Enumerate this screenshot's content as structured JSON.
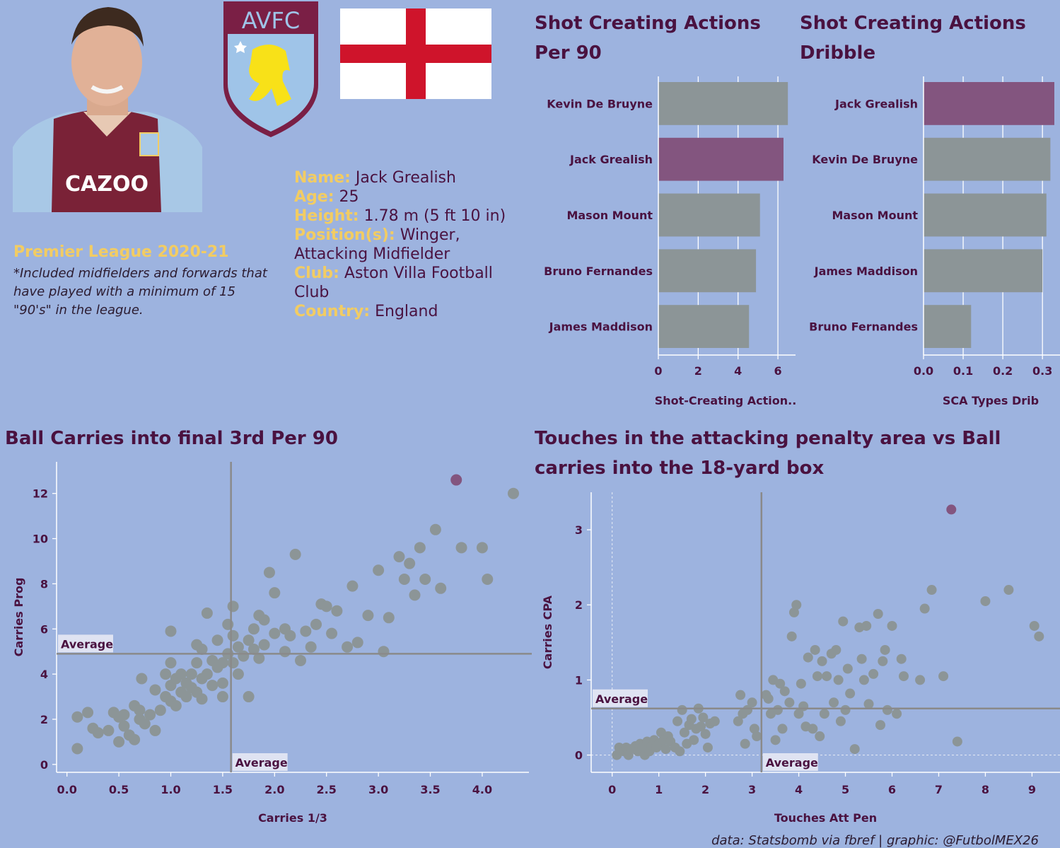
{
  "player": {
    "name_label": "Name:",
    "name": "Jack Grealish",
    "age_label": "Age:",
    "age": "25",
    "height_label": "Height:",
    "height": "1.78 m (5 ft 10 in)",
    "position_label": "Position(s):",
    "position": "Winger, Attacking Midfielder",
    "club_label": "Club:",
    "club": "Aston Villa Football Club",
    "country_label": "Country:",
    "country": "England"
  },
  "club_badge": {
    "text": "AVFC"
  },
  "shirt_sponsor": "CAZOO",
  "league": "Premier League 2020-21",
  "note": "*Included midfielders and forwards that have played with a minimum of 15 \"90's\" in the league.",
  "credit": "data: Statsbomb via fbref | graphic: @FutbolMEX26",
  "colors": {
    "background": "#9db3df",
    "highlight": "#83557f",
    "others": "#8c9597",
    "text": "#4a1240",
    "accent": "#f2cc63"
  },
  "average_label": "Average",
  "chart_data": [
    {
      "type": "bar",
      "title": "Shot Creating Actions Per 90",
      "categories": [
        "Kevin De Bruyne",
        "Jack Grealish",
        "Mason Mount",
        "Bruno Fernandes",
        "James Maddison"
      ],
      "values": [
        6.5,
        6.28,
        5.1,
        4.9,
        4.55
      ],
      "highlight": "Jack Grealish",
      "xlabel": "Shot-Creating Action..",
      "xticks": [
        "0",
        "2",
        "4",
        "6"
      ],
      "xlim": [
        0,
        6.6
      ],
      "grid": true
    },
    {
      "type": "bar",
      "title": "Shot Creating Actions Dribble",
      "categories": [
        "Jack Grealish",
        "Kevin De Bruyne",
        "Mason Mount",
        "James Maddison",
        "Bruno Fernandes"
      ],
      "values": [
        0.33,
        0.32,
        0.31,
        0.3,
        0.12
      ],
      "highlight": "Jack Grealish",
      "xlabel": "SCA Types Drib",
      "xticks": [
        "0.0",
        "0.1",
        "0.2",
        "0.3"
      ],
      "xlim": [
        0,
        0.33
      ],
      "grid": true
    },
    {
      "type": "scatter",
      "title": "Ball Carries into final 3rd Per 90",
      "xlabel": "Carries 1/3",
      "ylabel": "Carries Prog",
      "xticks": [
        "0.0",
        "0.5",
        "1.0",
        "1.5",
        "2.0",
        "2.5",
        "3.0",
        "3.5",
        "4.0"
      ],
      "yticks": [
        "0",
        "2",
        "4",
        "6",
        "8",
        "10",
        "12"
      ],
      "xlim": [
        -0.1,
        4.45
      ],
      "ylim": [
        -0.35,
        13.4
      ],
      "x_average": 1.58,
      "y_average": 4.9,
      "highlight_point": [
        3.75,
        12.6
      ],
      "points": [
        [
          0.1,
          2.1
        ],
        [
          0.1,
          0.7
        ],
        [
          0.2,
          2.3
        ],
        [
          0.25,
          1.6
        ],
        [
          0.3,
          1.4
        ],
        [
          0.4,
          1.5
        ],
        [
          0.45,
          2.3
        ],
        [
          0.5,
          2.1
        ],
        [
          0.5,
          1.0
        ],
        [
          0.55,
          1.7
        ],
        [
          0.55,
          2.2
        ],
        [
          0.6,
          1.3
        ],
        [
          0.65,
          2.6
        ],
        [
          0.65,
          1.1
        ],
        [
          0.7,
          2.0
        ],
        [
          0.7,
          2.4
        ],
        [
          0.72,
          3.8
        ],
        [
          0.75,
          1.8
        ],
        [
          0.8,
          2.2
        ],
        [
          0.85,
          3.3
        ],
        [
          0.85,
          1.5
        ],
        [
          0.9,
          2.4
        ],
        [
          0.95,
          3.0
        ],
        [
          0.95,
          4.0
        ],
        [
          1.0,
          2.8
        ],
        [
          1.0,
          3.5
        ],
        [
          1.0,
          4.5
        ],
        [
          1.0,
          5.9
        ],
        [
          1.05,
          3.8
        ],
        [
          1.05,
          2.6
        ],
        [
          1.1,
          3.2
        ],
        [
          1.1,
          4.0
        ],
        [
          1.15,
          3.6
        ],
        [
          1.15,
          3.0
        ],
        [
          1.2,
          4.0
        ],
        [
          1.2,
          3.4
        ],
        [
          1.25,
          3.2
        ],
        [
          1.25,
          4.5
        ],
        [
          1.25,
          5.3
        ],
        [
          1.3,
          2.9
        ],
        [
          1.3,
          5.1
        ],
        [
          1.3,
          3.8
        ],
        [
          1.35,
          4.0
        ],
        [
          1.35,
          6.7
        ],
        [
          1.4,
          4.6
        ],
        [
          1.4,
          3.5
        ],
        [
          1.45,
          4.3
        ],
        [
          1.45,
          5.5
        ],
        [
          1.5,
          3.6
        ],
        [
          1.5,
          4.5
        ],
        [
          1.5,
          3.0
        ],
        [
          1.55,
          4.9
        ],
        [
          1.55,
          6.2
        ],
        [
          1.6,
          5.7
        ],
        [
          1.6,
          4.5
        ],
        [
          1.6,
          7.0
        ],
        [
          1.65,
          5.2
        ],
        [
          1.65,
          4.0
        ],
        [
          1.7,
          4.8
        ],
        [
          1.75,
          5.5
        ],
        [
          1.75,
          3.0
        ],
        [
          1.8,
          5.1
        ],
        [
          1.8,
          6.0
        ],
        [
          1.85,
          6.6
        ],
        [
          1.85,
          4.7
        ],
        [
          1.9,
          6.4
        ],
        [
          1.9,
          5.3
        ],
        [
          1.95,
          8.5
        ],
        [
          2.0,
          5.8
        ],
        [
          2.0,
          7.6
        ],
        [
          2.1,
          5.0
        ],
        [
          2.1,
          6.0
        ],
        [
          2.15,
          5.7
        ],
        [
          2.2,
          9.3
        ],
        [
          2.25,
          4.6
        ],
        [
          2.3,
          5.9
        ],
        [
          2.35,
          5.2
        ],
        [
          2.4,
          6.2
        ],
        [
          2.45,
          7.1
        ],
        [
          2.5,
          7.0
        ],
        [
          2.55,
          5.8
        ],
        [
          2.6,
          6.8
        ],
        [
          2.7,
          5.2
        ],
        [
          2.75,
          7.9
        ],
        [
          2.8,
          5.4
        ],
        [
          2.9,
          6.6
        ],
        [
          3.0,
          8.6
        ],
        [
          3.05,
          5.0
        ],
        [
          3.1,
          6.5
        ],
        [
          3.2,
          9.2
        ],
        [
          3.25,
          8.2
        ],
        [
          3.3,
          8.9
        ],
        [
          3.35,
          7.5
        ],
        [
          3.4,
          9.6
        ],
        [
          3.45,
          8.2
        ],
        [
          3.55,
          10.4
        ],
        [
          3.6,
          7.8
        ],
        [
          3.8,
          9.6
        ],
        [
          4.0,
          9.6
        ],
        [
          4.05,
          8.2
        ],
        [
          4.3,
          12.0
        ]
      ]
    },
    {
      "type": "scatter",
      "title": "Touches in the attacking penalty area vs Ball carries into the 18-yard box",
      "xlabel": "Touches Att Pen",
      "ylabel": "Carries CPA",
      "xticks": [
        "0",
        "1",
        "2",
        "3",
        "4",
        "5",
        "6",
        "7",
        "8",
        "9"
      ],
      "yticks": [
        "0",
        "1",
        "2",
        "3"
      ],
      "xlim": [
        -0.45,
        9.6
      ],
      "ylim": [
        -0.23,
        3.5
      ],
      "x_average": 3.2,
      "y_average": 0.62,
      "highlight_point": [
        7.27,
        3.27
      ],
      "points": [
        [
          0.1,
          0.0
        ],
        [
          0.15,
          0.1
        ],
        [
          0.25,
          0.05
        ],
        [
          0.3,
          0.1
        ],
        [
          0.35,
          0.0
        ],
        [
          0.4,
          0.08
        ],
        [
          0.5,
          0.12
        ],
        [
          0.55,
          0.05
        ],
        [
          0.6,
          0.15
        ],
        [
          0.65,
          0.1
        ],
        [
          0.7,
          0.0
        ],
        [
          0.75,
          0.18
        ],
        [
          0.8,
          0.05
        ],
        [
          0.85,
          0.12
        ],
        [
          0.9,
          0.2
        ],
        [
          0.95,
          0.1
        ],
        [
          1.0,
          0.15
        ],
        [
          1.05,
          0.3
        ],
        [
          1.1,
          0.2
        ],
        [
          1.15,
          0.08
        ],
        [
          1.2,
          0.25
        ],
        [
          1.25,
          0.18
        ],
        [
          1.35,
          0.1
        ],
        [
          1.4,
          0.45
        ],
        [
          1.45,
          0.05
        ],
        [
          1.5,
          0.6
        ],
        [
          1.55,
          0.3
        ],
        [
          1.6,
          0.15
        ],
        [
          1.65,
          0.4
        ],
        [
          1.7,
          0.48
        ],
        [
          1.75,
          0.2
        ],
        [
          1.8,
          0.35
        ],
        [
          1.85,
          0.62
        ],
        [
          1.9,
          0.38
        ],
        [
          1.95,
          0.5
        ],
        [
          2.0,
          0.28
        ],
        [
          2.05,
          0.1
        ],
        [
          2.1,
          0.42
        ],
        [
          2.2,
          0.45
        ],
        [
          2.7,
          0.45
        ],
        [
          2.75,
          0.8
        ],
        [
          2.8,
          0.55
        ],
        [
          2.85,
          0.15
        ],
        [
          2.9,
          0.6
        ],
        [
          3.0,
          0.7
        ],
        [
          3.05,
          0.35
        ],
        [
          3.1,
          0.25
        ],
        [
          3.3,
          0.8
        ],
        [
          3.35,
          0.75
        ],
        [
          3.4,
          0.55
        ],
        [
          3.45,
          1.0
        ],
        [
          3.5,
          0.2
        ],
        [
          3.55,
          0.6
        ],
        [
          3.6,
          0.95
        ],
        [
          3.65,
          0.35
        ],
        [
          3.7,
          0.85
        ],
        [
          3.8,
          0.7
        ],
        [
          3.85,
          1.58
        ],
        [
          3.9,
          1.9
        ],
        [
          3.95,
          2.0
        ],
        [
          4.0,
          0.55
        ],
        [
          4.05,
          0.95
        ],
        [
          4.1,
          0.65
        ],
        [
          4.15,
          0.38
        ],
        [
          4.2,
          1.3
        ],
        [
          4.3,
          0.35
        ],
        [
          4.35,
          1.4
        ],
        [
          4.4,
          1.05
        ],
        [
          4.45,
          0.25
        ],
        [
          4.5,
          1.25
        ],
        [
          4.55,
          0.55
        ],
        [
          4.6,
          1.05
        ],
        [
          4.7,
          1.35
        ],
        [
          4.75,
          0.7
        ],
        [
          4.8,
          1.4
        ],
        [
          4.85,
          1.0
        ],
        [
          4.9,
          0.45
        ],
        [
          4.95,
          1.78
        ],
        [
          5.0,
          0.6
        ],
        [
          5.05,
          1.15
        ],
        [
          5.1,
          0.82
        ],
        [
          5.2,
          0.08
        ],
        [
          5.3,
          1.7
        ],
        [
          5.35,
          1.28
        ],
        [
          5.4,
          1.0
        ],
        [
          5.45,
          1.72
        ],
        [
          5.5,
          0.68
        ],
        [
          5.6,
          1.08
        ],
        [
          5.7,
          1.88
        ],
        [
          5.75,
          0.4
        ],
        [
          5.8,
          1.25
        ],
        [
          5.85,
          1.4
        ],
        [
          5.9,
          0.6
        ],
        [
          6.0,
          1.72
        ],
        [
          6.1,
          0.55
        ],
        [
          6.2,
          1.28
        ],
        [
          6.25,
          1.05
        ],
        [
          6.6,
          1.0
        ],
        [
          6.7,
          1.95
        ],
        [
          6.85,
          2.2
        ],
        [
          7.1,
          1.05
        ],
        [
          7.4,
          0.18
        ],
        [
          8.0,
          2.05
        ],
        [
          8.5,
          2.2
        ],
        [
          9.05,
          1.72
        ],
        [
          9.15,
          1.58
        ]
      ]
    }
  ]
}
